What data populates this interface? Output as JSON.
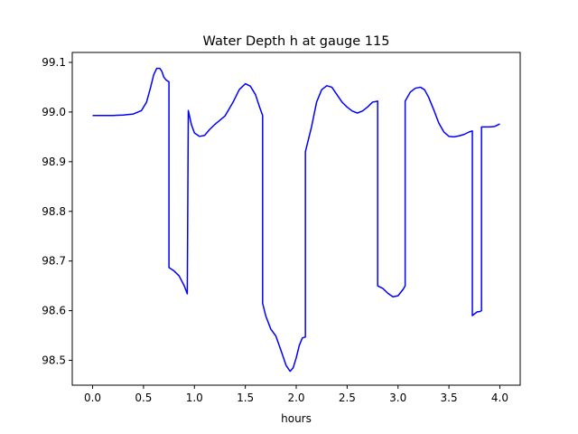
{
  "chart_data": {
    "type": "line",
    "title": "Water Depth h at gauge 115",
    "xlabel": "hours",
    "ylabel": "",
    "xlim": [
      -0.2,
      4.2
    ],
    "ylim": [
      98.45,
      99.12
    ],
    "x_ticks": [
      0.0,
      0.5,
      1.0,
      1.5,
      2.0,
      2.5,
      3.0,
      3.5,
      4.0
    ],
    "x_tick_labels": [
      "0.0",
      "0.5",
      "1.0",
      "1.5",
      "2.0",
      "2.5",
      "3.0",
      "3.5",
      "4.0"
    ],
    "y_ticks": [
      98.5,
      98.6,
      98.7,
      98.8,
      98.9,
      99.0,
      99.1
    ],
    "y_tick_labels": [
      "98.5",
      "98.6",
      "98.7",
      "98.8",
      "98.9",
      "99.0",
      "99.1"
    ],
    "grid": false,
    "series": [
      {
        "color": "#0000ff",
        "x": [
          0.0,
          0.1,
          0.2,
          0.3,
          0.4,
          0.48,
          0.53,
          0.57,
          0.6,
          0.63,
          0.66,
          0.68,
          0.7,
          0.72,
          0.74,
          0.75,
          0.75,
          0.8,
          0.85,
          0.9,
          0.93,
          0.94,
          0.97,
          1.0,
          1.05,
          1.1,
          1.15,
          1.2,
          1.3,
          1.38,
          1.44,
          1.5,
          1.55,
          1.6,
          1.64,
          1.67,
          1.67,
          1.7,
          1.75,
          1.8,
          1.85,
          1.9,
          1.94,
          1.97,
          2.0,
          2.03,
          2.06,
          2.09,
          2.09,
          2.15,
          2.2,
          2.25,
          2.3,
          2.35,
          2.4,
          2.45,
          2.5,
          2.55,
          2.6,
          2.65,
          2.7,
          2.75,
          2.8,
          2.8,
          2.85,
          2.9,
          2.95,
          3.0,
          3.05,
          3.07,
          3.07,
          3.12,
          3.17,
          3.22,
          3.26,
          3.3,
          3.35,
          3.4,
          3.45,
          3.5,
          3.55,
          3.6,
          3.65,
          3.7,
          3.73,
          3.73,
          3.76,
          3.78,
          3.8,
          3.82,
          3.82,
          3.9,
          3.95,
          4.0
        ],
        "y": [
          98.993,
          98.993,
          98.993,
          98.994,
          98.996,
          99.003,
          99.02,
          99.05,
          99.075,
          99.088,
          99.088,
          99.082,
          99.07,
          99.065,
          99.062,
          99.061,
          98.687,
          98.68,
          98.67,
          98.65,
          98.634,
          99.003,
          98.975,
          98.958,
          98.951,
          98.953,
          98.965,
          98.975,
          98.992,
          99.02,
          99.045,
          99.057,
          99.052,
          99.035,
          99.01,
          98.993,
          98.615,
          98.59,
          98.563,
          98.549,
          98.52,
          98.49,
          98.478,
          98.485,
          98.505,
          98.53,
          98.545,
          98.547,
          98.92,
          98.97,
          99.02,
          99.045,
          99.053,
          99.05,
          99.035,
          99.02,
          99.01,
          99.002,
          98.998,
          99.002,
          99.01,
          99.02,
          99.022,
          98.65,
          98.645,
          98.635,
          98.628,
          98.63,
          98.643,
          98.65,
          99.022,
          99.04,
          99.048,
          99.05,
          99.045,
          99.03,
          99.005,
          98.978,
          98.96,
          98.951,
          98.95,
          98.952,
          98.955,
          98.96,
          98.962,
          98.59,
          98.595,
          98.598,
          98.598,
          98.6,
          98.97,
          98.97,
          98.971,
          98.976
        ]
      }
    ]
  }
}
